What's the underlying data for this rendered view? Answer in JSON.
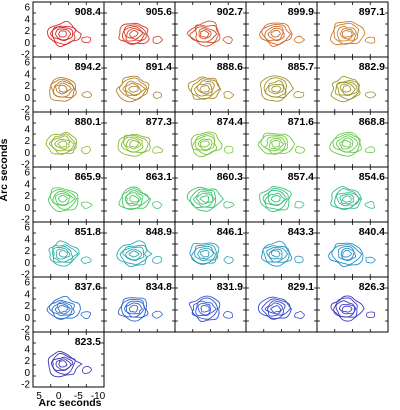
{
  "chart_data": {
    "type": "contour",
    "xlabel": "Arc seconds",
    "ylabel": "Arc seconds",
    "x_ticks": [
      "5",
      "0",
      "-5",
      "-10"
    ],
    "y_ticks": [
      "6",
      "4",
      "2",
      "0",
      "-2"
    ],
    "grid": false,
    "layout": "7 rows x 5 columns (last row has 1 panel)",
    "panels": [
      {
        "label": "908.4",
        "color": "#d9282b"
      },
      {
        "label": "905.6",
        "color": "#d63a22"
      },
      {
        "label": "902.7",
        "color": "#d24d2a"
      },
      {
        "label": "899.9",
        "color": "#cd6a2a"
      },
      {
        "label": "897.1",
        "color": "#c97d2c"
      },
      {
        "label": "894.2",
        "color": "#b77a26"
      },
      {
        "label": "891.4",
        "color": "#b0842a"
      },
      {
        "label": "888.6",
        "color": "#a88a2a"
      },
      {
        "label": "885.7",
        "color": "#a2902c"
      },
      {
        "label": "882.9",
        "color": "#9b962e"
      },
      {
        "label": "880.1",
        "color": "#8fb52f"
      },
      {
        "label": "877.3",
        "color": "#86bd34"
      },
      {
        "label": "874.4",
        "color": "#7cc53a"
      },
      {
        "label": "871.6",
        "color": "#6fca3f"
      },
      {
        "label": "868.8",
        "color": "#62cc46"
      },
      {
        "label": "865.9",
        "color": "#4fcc58"
      },
      {
        "label": "863.1",
        "color": "#45c863"
      },
      {
        "label": "860.3",
        "color": "#3cc46e"
      },
      {
        "label": "857.4",
        "color": "#37bf7c"
      },
      {
        "label": "854.6",
        "color": "#34b98a"
      },
      {
        "label": "851.8",
        "color": "#2fb0a4"
      },
      {
        "label": "848.9",
        "color": "#2ba8ae"
      },
      {
        "label": "846.1",
        "color": "#28a0b6"
      },
      {
        "label": "843.3",
        "color": "#2597bd"
      },
      {
        "label": "840.4",
        "color": "#238fc4"
      },
      {
        "label": "837.6",
        "color": "#2a6fd0"
      },
      {
        "label": "834.8",
        "color": "#2e62d2"
      },
      {
        "label": "831.9",
        "color": "#3355d0"
      },
      {
        "label": "829.1",
        "color": "#3848cc"
      },
      {
        "label": "826.3",
        "color": "#3b3cc6"
      },
      {
        "label": "823.5",
        "color": "#3a34b8"
      }
    ]
  }
}
